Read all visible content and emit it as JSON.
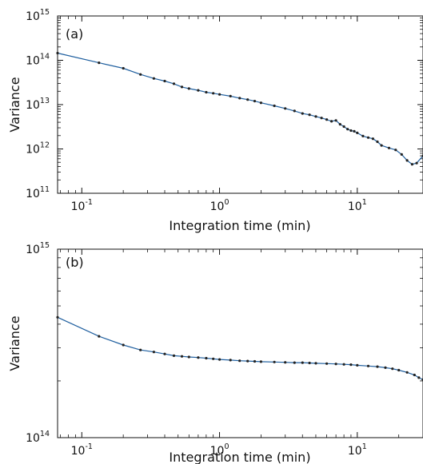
{
  "chart_data": [
    {
      "type": "line",
      "panel_label": "(a)",
      "xlabel": "Integration time (min)",
      "ylabel": "Variance",
      "x_scale": "log",
      "y_scale": "log",
      "xlim": [
        0.0667,
        30
      ],
      "ylim": [
        100000000000.0,
        1000000000000000.0
      ],
      "x_ticks": [
        {
          "value": 0.1,
          "base": "10",
          "exp": "-1"
        },
        {
          "value": 1,
          "base": "10",
          "exp": "0"
        },
        {
          "value": 10,
          "base": "10",
          "exp": "1"
        }
      ],
      "y_ticks": [
        {
          "value": 100000000000.0,
          "base": "10",
          "exp": "11"
        },
        {
          "value": 1000000000000.0,
          "base": "10",
          "exp": "12"
        },
        {
          "value": 10000000000000.0,
          "base": "10",
          "exp": "13"
        },
        {
          "value": 100000000000000.0,
          "base": "10",
          "exp": "14"
        },
        {
          "value": 1000000000000000.0,
          "base": "10",
          "exp": "15"
        }
      ],
      "grid": false,
      "series": [
        {
          "color": "#1f5f9f",
          "marker_color": "#222222",
          "x": [
            0.0667,
            0.1333,
            0.2,
            0.2667,
            0.3333,
            0.4,
            0.4667,
            0.5333,
            0.6,
            0.7,
            0.8,
            0.9,
            1.0,
            1.2,
            1.4,
            1.6,
            1.8,
            2.0,
            2.5,
            3.0,
            3.5,
            4.0,
            4.5,
            5.0,
            5.5,
            6.0,
            6.5,
            7.0,
            7.5,
            8.0,
            8.5,
            9.0,
            9.5,
            10.0,
            11.0,
            12.0,
            13.0,
            14.0,
            15.0,
            17.0,
            19.0,
            21.0,
            23.0,
            25.0,
            27.0,
            30.0
          ],
          "y": [
            145000000000000.0,
            88000000000000.0,
            66000000000000.0,
            48000000000000.0,
            39000000000000.0,
            34000000000000.0,
            29500000000000.0,
            25000000000000.0,
            23000000000000.0,
            21000000000000.0,
            19000000000000.0,
            18000000000000.0,
            17000000000000.0,
            15500000000000.0,
            14000000000000.0,
            13000000000000.0,
            12000000000000.0,
            11000000000000.0,
            9400000000000.0,
            8200000000000.0,
            7200000000000.0,
            6300000000000.0,
            5900000000000.0,
            5400000000000.0,
            5000000000000.0,
            4600000000000.0,
            4200000000000.0,
            4400000000000.0,
            3600000000000.0,
            3200000000000.0,
            2800000000000.0,
            2600000000000.0,
            2500000000000.0,
            2300000000000.0,
            1950000000000.0,
            1800000000000.0,
            1700000000000.0,
            1450000000000.0,
            1200000000000.0,
            1050000000000.0,
            950000000000.0,
            750000000000.0,
            550000000000.0,
            450000000000.0,
            480000000000.0,
            700000000000.0
          ]
        }
      ]
    },
    {
      "type": "line",
      "panel_label": "(b)",
      "xlabel": "Integration time (min)",
      "ylabel": "Variance",
      "x_scale": "log",
      "y_scale": "log",
      "xlim": [
        0.0667,
        30
      ],
      "ylim": [
        100000000000000.0,
        1000000000000000.0
      ],
      "x_ticks": [
        {
          "value": 0.1,
          "base": "10",
          "exp": "-1"
        },
        {
          "value": 1,
          "base": "10",
          "exp": "0"
        },
        {
          "value": 10,
          "base": "10",
          "exp": "1"
        }
      ],
      "y_ticks": [
        {
          "value": 100000000000000.0,
          "base": "10",
          "exp": "14"
        },
        {
          "value": 1000000000000000.0,
          "base": "10",
          "exp": "15"
        }
      ],
      "grid": false,
      "series": [
        {
          "color": "#1f5f9f",
          "marker_color": "#222222",
          "x": [
            0.0667,
            0.1333,
            0.2,
            0.2667,
            0.3333,
            0.4,
            0.4667,
            0.5333,
            0.6,
            0.7,
            0.8,
            0.9,
            1.0,
            1.2,
            1.4,
            1.6,
            1.8,
            2.0,
            2.5,
            3.0,
            3.5,
            4.0,
            4.5,
            5.0,
            6.0,
            7.0,
            8.0,
            9.0,
            10.0,
            12.0,
            14.0,
            16.0,
            18.0,
            20.0,
            23.0,
            26.0,
            28.0,
            30.0
          ],
          "y": [
            435000000000000.0,
            345000000000000.0,
            310000000000000.0,
            292000000000000.0,
            285000000000000.0,
            278000000000000.0,
            272000000000000.0,
            270000000000000.0,
            268000000000000.0,
            266000000000000.0,
            264000000000000.0,
            262000000000000.0,
            260000000000000.0,
            258000000000000.0,
            256000000000000.0,
            255000000000000.0,
            254000000000000.0,
            253000000000000.0,
            252000000000000.0,
            251000000000000.0,
            250000000000000.0,
            250000000000000.0,
            249000000000000.0,
            248000000000000.0,
            247000000000000.0,
            246000000000000.0,
            245000000000000.0,
            244000000000000.0,
            242000000000000.0,
            240000000000000.0,
            238000000000000.0,
            235000000000000.0,
            232000000000000.0,
            228000000000000.0,
            222000000000000.0,
            215000000000000.0,
            208000000000000.0,
            203000000000000.0
          ]
        }
      ]
    }
  ]
}
